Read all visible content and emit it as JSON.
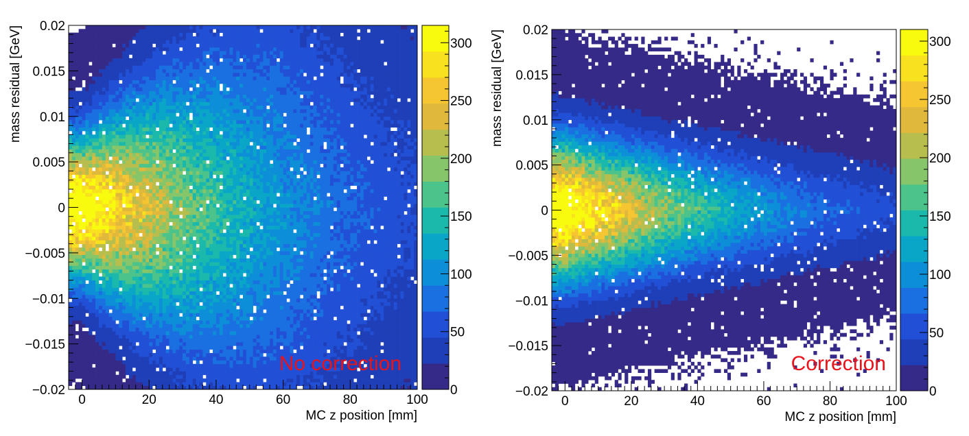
{
  "colors": {
    "palette": [
      "#352a87",
      "#1f3fb8",
      "#2150d6",
      "#1a70e0",
      "#0d8fd8",
      "#0aa6c8",
      "#1bb9ac",
      "#4cc38a",
      "#86c56a",
      "#b8be4d",
      "#e0b93c",
      "#f5c532",
      "#f8e11e",
      "#f9fb0e"
    ],
    "annotation": "#e8141b",
    "axis": "#000000"
  },
  "chart_data": [
    {
      "type": "heatmap",
      "annotation": "No correction",
      "xlabel": "MC z position [mm]",
      "ylabel": "mass residual [GeV]",
      "xlim": [
        -4,
        100
      ],
      "ylim": [
        -0.02,
        0.02
      ],
      "x_ticks": [
        "0",
        "20",
        "40",
        "60",
        "80",
        "100"
      ],
      "y_ticks": [
        "−0.02",
        "−0.015",
        "−0.01",
        "−0.005",
        "0",
        "0.005",
        "0.01",
        "0.015",
        "0.02"
      ],
      "colorbar": {
        "range": [
          0,
          315
        ],
        "ticks": [
          "0",
          "50",
          "100",
          "150",
          "200",
          "250",
          "300"
        ]
      },
      "density_model": {
        "peak_value": 300,
        "peak_x": 0,
        "peak_y": 0,
        "core_width_start": 0.0055,
        "core_width_end": 0.0175,
        "width_change_end_x": 60,
        "x_decay": 0.02
      }
    },
    {
      "type": "heatmap",
      "annotation": "Correction",
      "xlabel": "MC z position [mm]",
      "ylabel": "mass residual [GeV]",
      "xlim": [
        -4,
        100
      ],
      "ylim": [
        -0.02,
        0.02
      ],
      "x_ticks": [
        "0",
        "20",
        "40",
        "60",
        "80",
        "100"
      ],
      "y_ticks": [
        "−0.02",
        "−0.015",
        "−0.01",
        "−0.005",
        "0",
        "0.005",
        "0.01",
        "0.015",
        "0.02"
      ],
      "colorbar": {
        "range": [
          0,
          310
        ],
        "ticks": [
          "0",
          "50",
          "100",
          "150",
          "200",
          "250",
          "300"
        ]
      },
      "density_model": {
        "peak_value": 300,
        "peak_x": 0,
        "peak_y": 0,
        "core_width_start": 0.0055,
        "core_width_end": 0.004,
        "width_change_end_x": 100,
        "x_decay": 0.02
      }
    }
  ]
}
